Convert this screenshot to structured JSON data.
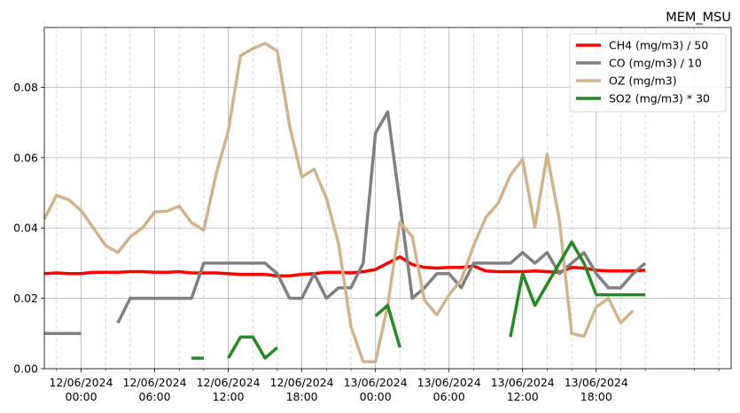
{
  "chart_data": {
    "type": "line",
    "title": "MEM_MSU",
    "xlabel": "",
    "ylabel": "",
    "ylim": [
      0,
      0.097
    ],
    "xlim": [
      "2024-06-11T21:00",
      "2024-06-14T05:00"
    ],
    "grid": true,
    "legend_position": "top-right",
    "y_ticks": [
      {
        "value": 0.0,
        "label": "0.00"
      },
      {
        "value": 0.02,
        "label": "0.02"
      },
      {
        "value": 0.04,
        "label": "0.04"
      },
      {
        "value": 0.06,
        "label": "0.06"
      },
      {
        "value": 0.08,
        "label": "0.08"
      }
    ],
    "x_major_ticks": [
      {
        "t": "2024-06-12T00:00",
        "date": "12/06/2024",
        "time": "00:00"
      },
      {
        "t": "2024-06-12T06:00",
        "date": "12/06/2024",
        "time": "06:00"
      },
      {
        "t": "2024-06-12T12:00",
        "date": "12/06/2024",
        "time": "12:00"
      },
      {
        "t": "2024-06-12T18:00",
        "date": "12/06/2024",
        "time": "18:00"
      },
      {
        "t": "2024-06-13T00:00",
        "date": "13/06/2024",
        "time": "00:00"
      },
      {
        "t": "2024-06-13T06:00",
        "date": "13/06/2024",
        "time": "06:00"
      },
      {
        "t": "2024-06-13T12:00",
        "date": "13/06/2024",
        "time": "12:00"
      },
      {
        "t": "2024-06-13T18:00",
        "date": "13/06/2024",
        "time": "18:00"
      }
    ],
    "x_minor_ticks": [
      "2024-06-11T22:00",
      "2024-06-12T02:00",
      "2024-06-12T04:00",
      "2024-06-12T08:00",
      "2024-06-12T10:00",
      "2024-06-12T14:00",
      "2024-06-12T16:00",
      "2024-06-12T20:00",
      "2024-06-12T22:00",
      "2024-06-13T02:00",
      "2024-06-13T04:00",
      "2024-06-13T08:00",
      "2024-06-13T10:00",
      "2024-06-13T14:00",
      "2024-06-13T16:00",
      "2024-06-13T20:00",
      "2024-06-13T22:00",
      "2024-06-14T02:00",
      "2024-06-14T04:00"
    ],
    "series": [
      {
        "name": "CH4 (mg/m3) / 50",
        "color": "#ff0000",
        "points": [
          [
            "2024-06-11T21:00",
            0.027
          ],
          [
            "2024-06-11T22:00",
            0.0272
          ],
          [
            "2024-06-11T23:00",
            0.027
          ],
          [
            "2024-06-12T00:00",
            0.027
          ],
          [
            "2024-06-12T01:00",
            0.0274
          ],
          [
            "2024-06-12T02:00",
            0.0274
          ],
          [
            "2024-06-12T03:00",
            0.0274
          ],
          [
            "2024-06-12T04:00",
            0.0276
          ],
          [
            "2024-06-12T05:00",
            0.0276
          ],
          [
            "2024-06-12T06:00",
            0.0274
          ],
          [
            "2024-06-12T07:00",
            0.0274
          ],
          [
            "2024-06-12T08:00",
            0.0276
          ],
          [
            "2024-06-12T09:00",
            0.0272
          ],
          [
            "2024-06-12T10:00",
            0.0272
          ],
          [
            "2024-06-12T11:00",
            0.0272
          ],
          [
            "2024-06-12T12:00",
            0.027
          ],
          [
            "2024-06-12T13:00",
            0.0268
          ],
          [
            "2024-06-12T14:00",
            0.0268
          ],
          [
            "2024-06-12T15:00",
            0.0268
          ],
          [
            "2024-06-12T16:00",
            0.0264
          ],
          [
            "2024-06-12T17:00",
            0.0264
          ],
          [
            "2024-06-12T18:00",
            0.0268
          ],
          [
            "2024-06-12T19:00",
            0.027
          ],
          [
            "2024-06-12T20:00",
            0.0274
          ],
          [
            "2024-06-12T21:00",
            0.0274
          ],
          [
            "2024-06-12T22:00",
            0.0272
          ],
          [
            "2024-06-12T23:00",
            0.0276
          ],
          [
            "2024-06-13T00:00",
            0.0282
          ],
          [
            "2024-06-13T01:00",
            0.03
          ],
          [
            "2024-06-13T02:00",
            0.0318
          ],
          [
            "2024-06-13T03:00",
            0.0296
          ],
          [
            "2024-06-13T04:00",
            0.0288
          ],
          [
            "2024-06-13T05:00",
            0.0286
          ],
          [
            "2024-06-13T06:00",
            0.0288
          ],
          [
            "2024-06-13T07:00",
            0.0288
          ],
          [
            "2024-06-13T08:00",
            0.0292
          ],
          [
            "2024-06-13T09:00",
            0.0278
          ],
          [
            "2024-06-13T10:00",
            0.0276
          ],
          [
            "2024-06-13T11:00",
            0.0276
          ],
          [
            "2024-06-13T12:00",
            0.0276
          ],
          [
            "2024-06-13T13:00",
            0.0278
          ],
          [
            "2024-06-13T14:00",
            0.0276
          ],
          [
            "2024-06-13T15:00",
            0.0274
          ],
          [
            "2024-06-13T16:00",
            0.0288
          ],
          [
            "2024-06-13T17:00",
            0.0286
          ],
          [
            "2024-06-13T18:00",
            0.028
          ],
          [
            "2024-06-13T19:00",
            0.0278
          ],
          [
            "2024-06-13T20:00",
            0.0278
          ],
          [
            "2024-06-13T21:00",
            0.0278
          ],
          [
            "2024-06-13T22:00",
            0.028
          ]
        ]
      },
      {
        "name": "CO (mg/m3) / 10",
        "color": "#808080",
        "points": [
          [
            "2024-06-11T21:00",
            0.01
          ],
          [
            "2024-06-11T22:00",
            0.01
          ],
          [
            "2024-06-11T23:00",
            0.01
          ],
          [
            "2024-06-12T00:00",
            0.01
          ],
          [
            "2024-06-12T01:00",
            null
          ],
          [
            "2024-06-12T02:00",
            null
          ],
          [
            "2024-06-12T03:00",
            0.013
          ],
          [
            "2024-06-12T04:00",
            0.02
          ],
          [
            "2024-06-12T05:00",
            0.02
          ],
          [
            "2024-06-12T06:00",
            0.02
          ],
          [
            "2024-06-12T07:00",
            0.02
          ],
          [
            "2024-06-12T08:00",
            0.02
          ],
          [
            "2024-06-12T09:00",
            0.02
          ],
          [
            "2024-06-12T10:00",
            0.03
          ],
          [
            "2024-06-12T11:00",
            0.03
          ],
          [
            "2024-06-12T12:00",
            0.03
          ],
          [
            "2024-06-12T13:00",
            0.03
          ],
          [
            "2024-06-12T14:00",
            0.03
          ],
          [
            "2024-06-12T15:00",
            0.03
          ],
          [
            "2024-06-12T16:00",
            0.027
          ],
          [
            "2024-06-12T17:00",
            0.02
          ],
          [
            "2024-06-12T18:00",
            0.02
          ],
          [
            "2024-06-12T19:00",
            0.027
          ],
          [
            "2024-06-12T20:00",
            0.02
          ],
          [
            "2024-06-12T21:00",
            0.023
          ],
          [
            "2024-06-12T22:00",
            0.023
          ],
          [
            "2024-06-12T23:00",
            0.03
          ],
          [
            "2024-06-13T00:00",
            0.067
          ],
          [
            "2024-06-13T01:00",
            0.073
          ],
          [
            "2024-06-13T02:00",
            0.047
          ],
          [
            "2024-06-13T03:00",
            0.02
          ],
          [
            "2024-06-13T04:00",
            0.023
          ],
          [
            "2024-06-13T05:00",
            0.027
          ],
          [
            "2024-06-13T06:00",
            0.027
          ],
          [
            "2024-06-13T07:00",
            0.023
          ],
          [
            "2024-06-13T08:00",
            0.03
          ],
          [
            "2024-06-13T09:00",
            0.03
          ],
          [
            "2024-06-13T10:00",
            0.03
          ],
          [
            "2024-06-13T11:00",
            0.03
          ],
          [
            "2024-06-13T12:00",
            0.033
          ],
          [
            "2024-06-13T13:00",
            0.03
          ],
          [
            "2024-06-13T14:00",
            0.033
          ],
          [
            "2024-06-13T15:00",
            0.027
          ],
          [
            "2024-06-13T16:00",
            0.03
          ],
          [
            "2024-06-13T17:00",
            0.033
          ],
          [
            "2024-06-13T18:00",
            0.027
          ],
          [
            "2024-06-13T19:00",
            0.023
          ],
          [
            "2024-06-13T20:00",
            0.023
          ],
          [
            "2024-06-13T21:00",
            0.027
          ],
          [
            "2024-06-13T22:00",
            0.03
          ]
        ]
      },
      {
        "name": "OZ (mg/m3)",
        "color": "#d2b48c",
        "points": [
          [
            "2024-06-11T21:00",
            0.0425
          ],
          [
            "2024-06-11T22:00",
            0.0493
          ],
          [
            "2024-06-11T23:00",
            0.048
          ],
          [
            "2024-06-12T00:00",
            0.045
          ],
          [
            "2024-06-12T01:00",
            0.04
          ],
          [
            "2024-06-12T02:00",
            0.035
          ],
          [
            "2024-06-12T03:00",
            0.033
          ],
          [
            "2024-06-12T04:00",
            0.0375
          ],
          [
            "2024-06-12T05:00",
            0.04
          ],
          [
            "2024-06-12T06:00",
            0.0446
          ],
          [
            "2024-06-12T07:00",
            0.0448
          ],
          [
            "2024-06-12T08:00",
            0.0462
          ],
          [
            "2024-06-12T09:00",
            0.0415
          ],
          [
            "2024-06-12T10:00",
            0.0394
          ],
          [
            "2024-06-12T11:00",
            0.0553
          ],
          [
            "2024-06-12T12:00",
            0.0676
          ],
          [
            "2024-06-12T13:00",
            0.089
          ],
          [
            "2024-06-12T14:00",
            0.091
          ],
          [
            "2024-06-12T15:00",
            0.0925
          ],
          [
            "2024-06-12T16:00",
            0.0903
          ],
          [
            "2024-06-12T17:00",
            0.069
          ],
          [
            "2024-06-12T18:00",
            0.0545
          ],
          [
            "2024-06-12T19:00",
            0.0567
          ],
          [
            "2024-06-12T20:00",
            0.0485
          ],
          [
            "2024-06-12T21:00",
            0.0355
          ],
          [
            "2024-06-12T22:00",
            0.012
          ],
          [
            "2024-06-12T23:00",
            0.002
          ],
          [
            "2024-06-13T00:00",
            0.002
          ],
          [
            "2024-06-13T01:00",
            0.018
          ],
          [
            "2024-06-13T02:00",
            0.0416
          ],
          [
            "2024-06-13T03:00",
            0.0376
          ],
          [
            "2024-06-13T04:00",
            0.0195
          ],
          [
            "2024-06-13T05:00",
            0.0153
          ],
          [
            "2024-06-13T06:00",
            0.021
          ],
          [
            "2024-06-13T07:00",
            0.0253
          ],
          [
            "2024-06-13T08:00",
            0.035
          ],
          [
            "2024-06-13T09:00",
            0.043
          ],
          [
            "2024-06-13T10:00",
            0.047
          ],
          [
            "2024-06-13T11:00",
            0.055
          ],
          [
            "2024-06-13T12:00",
            0.0595
          ],
          [
            "2024-06-13T13:00",
            0.0402
          ],
          [
            "2024-06-13T14:00",
            0.061
          ],
          [
            "2024-06-13T15:00",
            0.042
          ],
          [
            "2024-06-13T16:00",
            0.01
          ],
          [
            "2024-06-13T17:00",
            0.0092
          ],
          [
            "2024-06-13T18:00",
            0.0175
          ],
          [
            "2024-06-13T19:00",
            0.02
          ],
          [
            "2024-06-13T20:00",
            0.013
          ],
          [
            "2024-06-13T21:00",
            0.0165
          ]
        ]
      },
      {
        "name": "SO2 (mg/m3) * 30",
        "color": "#228b22",
        "points": [
          [
            "2024-06-12T09:00",
            0.003
          ],
          [
            "2024-06-12T10:00",
            0.003
          ],
          [
            "2024-06-12T11:00",
            null
          ],
          [
            "2024-06-12T12:00",
            0.003
          ],
          [
            "2024-06-12T13:00",
            0.009
          ],
          [
            "2024-06-12T14:00",
            0.009
          ],
          [
            "2024-06-12T15:00",
            0.003
          ],
          [
            "2024-06-12T16:00",
            0.006
          ],
          [
            "2024-06-12T17:00",
            null
          ],
          [
            "2024-06-12T18:00",
            null
          ],
          [
            "2024-06-12T19:00",
            null
          ],
          [
            "2024-06-12T20:00",
            null
          ],
          [
            "2024-06-12T21:00",
            null
          ],
          [
            "2024-06-12T22:00",
            null
          ],
          [
            "2024-06-12T23:00",
            null
          ],
          [
            "2024-06-13T00:00",
            0.015
          ],
          [
            "2024-06-13T01:00",
            0.018
          ],
          [
            "2024-06-13T02:00",
            0.006
          ],
          [
            "2024-06-13T03:00",
            null
          ],
          [
            "2024-06-13T04:00",
            null
          ],
          [
            "2024-06-13T05:00",
            null
          ],
          [
            "2024-06-13T06:00",
            null
          ],
          [
            "2024-06-13T07:00",
            null
          ],
          [
            "2024-06-13T08:00",
            null
          ],
          [
            "2024-06-13T09:00",
            null
          ],
          [
            "2024-06-13T10:00",
            null
          ],
          [
            "2024-06-13T11:00",
            0.009
          ],
          [
            "2024-06-13T12:00",
            0.027
          ],
          [
            "2024-06-13T13:00",
            0.018
          ],
          [
            "2024-06-13T14:00",
            0.024
          ],
          [
            "2024-06-13T15:00",
            0.03
          ],
          [
            "2024-06-13T16:00",
            0.036
          ],
          [
            "2024-06-13T17:00",
            0.03
          ],
          [
            "2024-06-13T18:00",
            0.021
          ],
          [
            "2024-06-13T19:00",
            0.021
          ],
          [
            "2024-06-13T20:00",
            0.021
          ],
          [
            "2024-06-13T21:00",
            0.021
          ],
          [
            "2024-06-13T22:00",
            0.021
          ]
        ]
      }
    ]
  }
}
